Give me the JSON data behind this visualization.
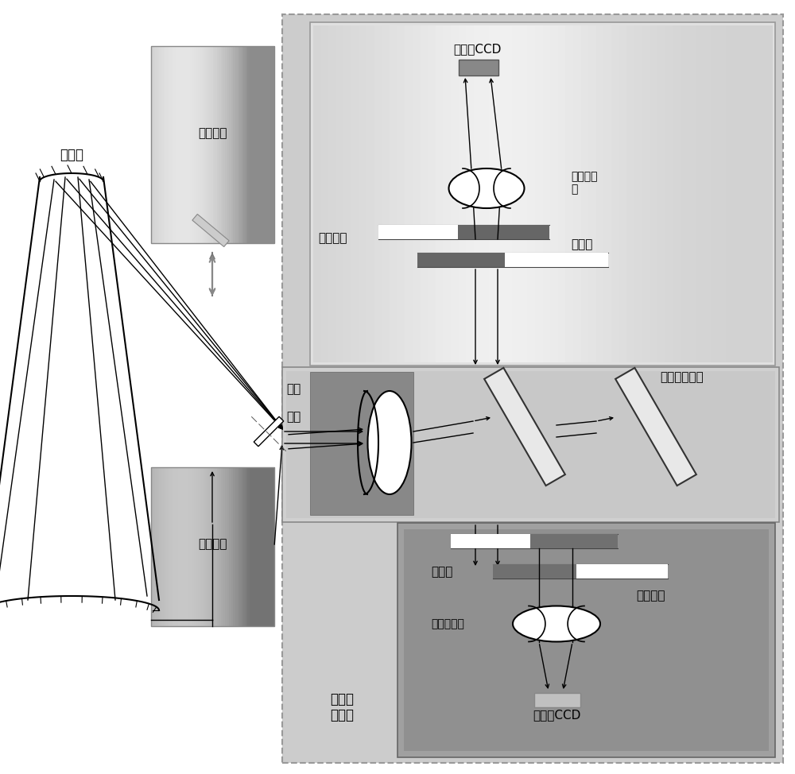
{
  "labels": {
    "telescope": "望远镜",
    "calibration": "定标系统",
    "guide": "导星系统",
    "focal": "焦面",
    "slit": "狭缝",
    "blue_ccd": "蓝通道CCD",
    "blue_cam": "蓝通道相\n机",
    "blue_filter": "滤光轮",
    "blue_grating": "光栅切换",
    "collimator": "准直分色系统",
    "red_filter": "滤光轮",
    "red_grating": "光栅切换",
    "red_cam": "红通道相机",
    "red_ccd": "红通道CCD",
    "dual_channel": "双通道\n光谱仪"
  }
}
